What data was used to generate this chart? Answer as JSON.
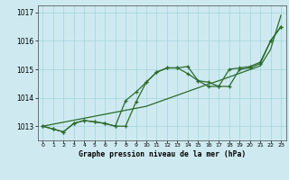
{
  "title": "Graphe pression niveau de la mer (hPa)",
  "bg_color": "#ceeaf0",
  "grid_color": "#a8d8e0",
  "line_color": "#2d6a2d",
  "xlim": [
    -0.5,
    23.5
  ],
  "ylim": [
    1012.5,
    1017.25
  ],
  "yticks": [
    1013,
    1014,
    1015,
    1016,
    1017
  ],
  "xticks": [
    0,
    1,
    2,
    3,
    4,
    5,
    6,
    7,
    8,
    9,
    10,
    11,
    12,
    13,
    14,
    15,
    16,
    17,
    18,
    19,
    20,
    21,
    22,
    23
  ],
  "series_wavy1": [
    1013.0,
    1012.9,
    1012.8,
    1013.1,
    1013.2,
    1013.15,
    1013.1,
    1013.0,
    1013.0,
    1013.85,
    1014.55,
    1014.9,
    1015.05,
    1015.05,
    1014.85,
    1014.6,
    1014.55,
    1014.4,
    1014.4,
    1015.0,
    1015.05,
    1015.2,
    1016.0,
    1016.5
  ],
  "series_wavy2": [
    1013.0,
    1012.9,
    1012.8,
    1013.1,
    1013.2,
    1013.15,
    1013.1,
    1013.0,
    1013.9,
    1014.2,
    1014.55,
    1014.9,
    1015.05,
    1015.05,
    1015.1,
    1014.6,
    1014.4,
    1014.4,
    1015.0,
    1015.05,
    1015.1,
    1015.25,
    1016.0,
    1016.5
  ],
  "series_straight": [
    1013.0,
    1013.07,
    1013.14,
    1013.21,
    1013.28,
    1013.35,
    1013.42,
    1013.49,
    1013.56,
    1013.63,
    1013.7,
    1013.83,
    1013.96,
    1014.09,
    1014.22,
    1014.35,
    1014.48,
    1014.6,
    1014.73,
    1014.86,
    1014.99,
    1015.12,
    1015.7,
    1016.9
  ]
}
